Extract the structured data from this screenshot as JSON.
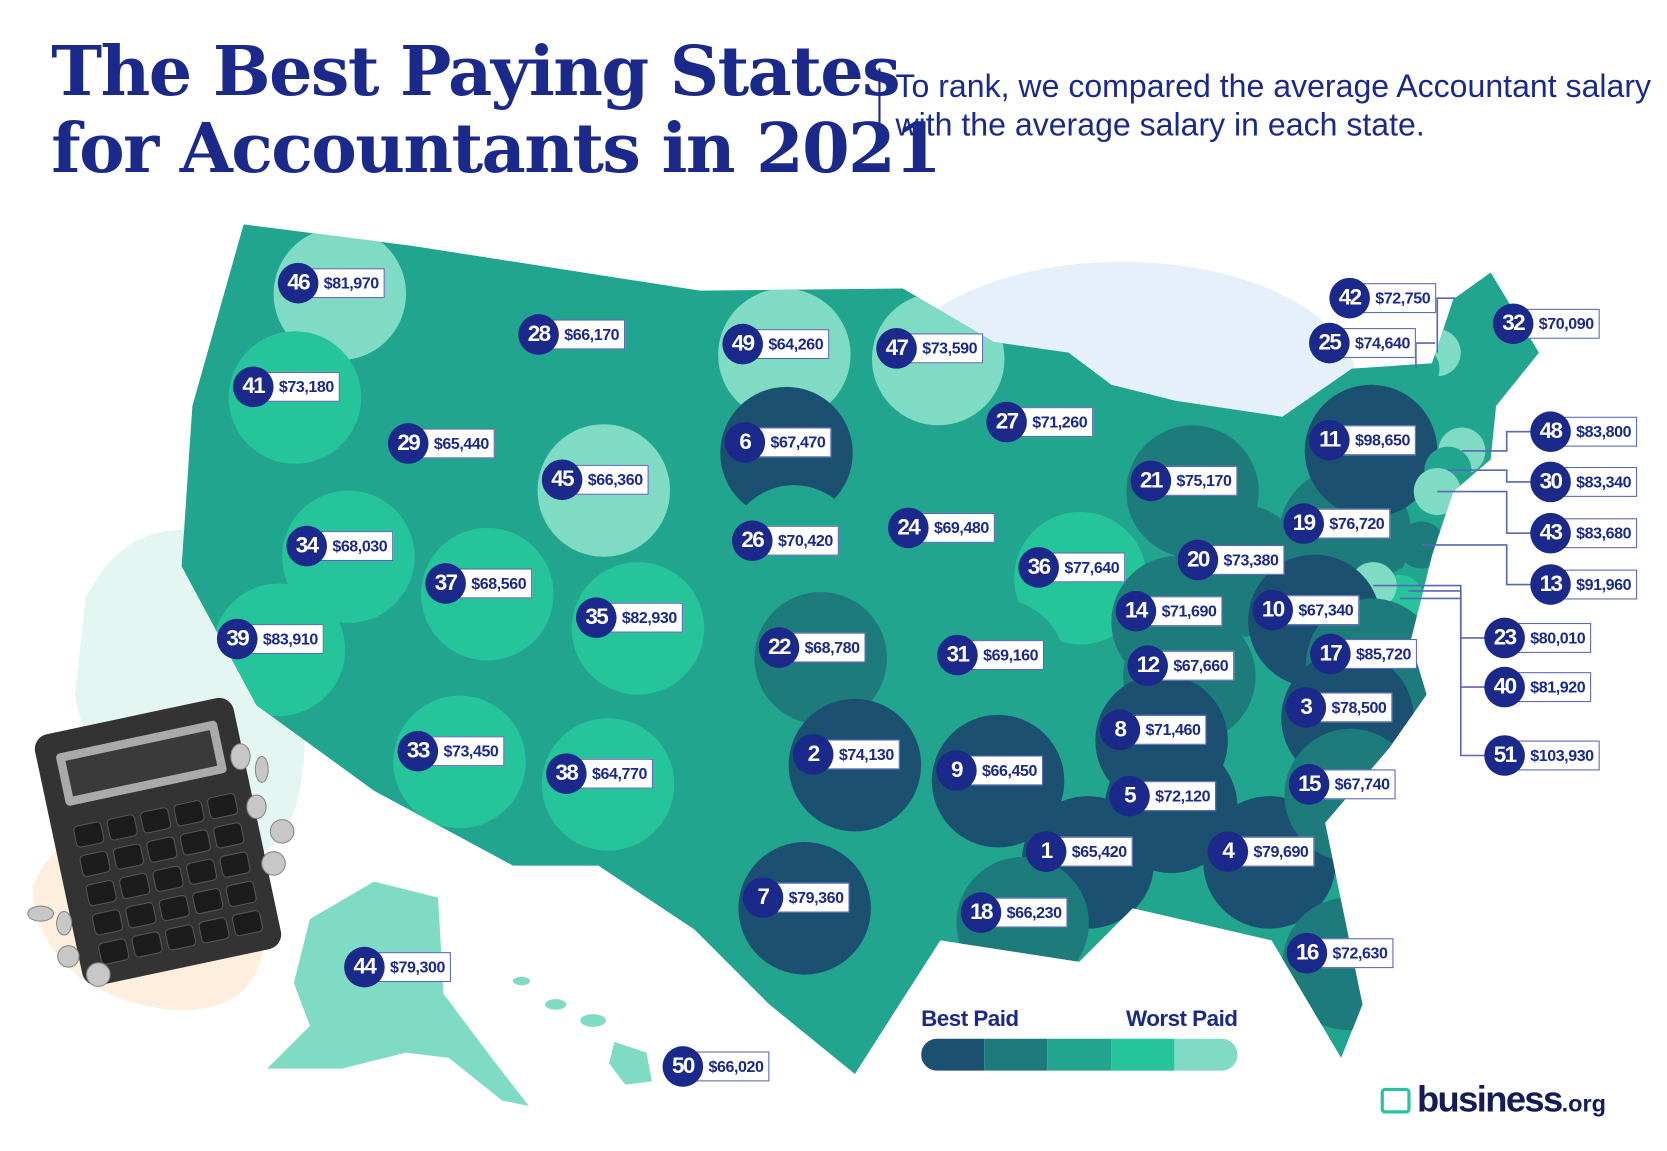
{
  "header": {
    "title_line1": "The Best Paying States",
    "title_line2": "for Accountants in 2021",
    "subtitle": "To rank, we compared the average Accountant salary with the average salary in each state."
  },
  "colors": {
    "navy": "#1b2a8a",
    "tiers": [
      "#1b5070",
      "#1e7b7c",
      "#22a58e",
      "#26c49a",
      "#7fdbc4"
    ],
    "lake": "#e6f0fa"
  },
  "legend": {
    "best": "Best Paid",
    "worst": "Worst Paid"
  },
  "logo": {
    "name": "business",
    "tld": ".org",
    "icon": "briefcase-icon"
  },
  "states": [
    {
      "rank": 46,
      "salary": "$81,970"
    },
    {
      "rank": 28,
      "salary": "$66,170"
    },
    {
      "rank": 49,
      "salary": "$64,260"
    },
    {
      "rank": 47,
      "salary": "$73,590"
    },
    {
      "rank": 41,
      "salary": "$73,180"
    },
    {
      "rank": 29,
      "salary": "$65,440"
    },
    {
      "rank": 6,
      "salary": "$67,470"
    },
    {
      "rank": 45,
      "salary": "$66,360"
    },
    {
      "rank": 27,
      "salary": "$71,260"
    },
    {
      "rank": 21,
      "salary": "$75,170"
    },
    {
      "rank": 24,
      "salary": "$69,480"
    },
    {
      "rank": 26,
      "salary": "$70,420"
    },
    {
      "rank": 34,
      "salary": "$68,030"
    },
    {
      "rank": 37,
      "salary": "$68,560"
    },
    {
      "rank": 36,
      "salary": "$77,640"
    },
    {
      "rank": 20,
      "salary": "$73,380"
    },
    {
      "rank": 19,
      "salary": "$76,720"
    },
    {
      "rank": 11,
      "salary": "$98,650"
    },
    {
      "rank": 42,
      "salary": "$72,750"
    },
    {
      "rank": 25,
      "salary": "$74,640"
    },
    {
      "rank": 32,
      "salary": "$70,090"
    },
    {
      "rank": 48,
      "salary": "$83,800"
    },
    {
      "rank": 30,
      "salary": "$83,340"
    },
    {
      "rank": 43,
      "salary": "$83,680"
    },
    {
      "rank": 13,
      "salary": "$91,960"
    },
    {
      "rank": 23,
      "salary": "$80,010"
    },
    {
      "rank": 40,
      "salary": "$81,920"
    },
    {
      "rank": 51,
      "salary": "$103,930"
    },
    {
      "rank": 35,
      "salary": "$82,930"
    },
    {
      "rank": 22,
      "salary": "$68,780"
    },
    {
      "rank": 39,
      "salary": "$83,910"
    },
    {
      "rank": 14,
      "salary": "$71,690"
    },
    {
      "rank": 10,
      "salary": "$67,340"
    },
    {
      "rank": 17,
      "salary": "$85,720"
    },
    {
      "rank": 31,
      "salary": "$69,160"
    },
    {
      "rank": 12,
      "salary": "$67,660"
    },
    {
      "rank": 3,
      "salary": "$78,500"
    },
    {
      "rank": 8,
      "salary": "$71,460"
    },
    {
      "rank": 33,
      "salary": "$73,450"
    },
    {
      "rank": 2,
      "salary": "$74,130"
    },
    {
      "rank": 9,
      "salary": "$66,450"
    },
    {
      "rank": 38,
      "salary": "$64,770"
    },
    {
      "rank": 5,
      "salary": "$72,120"
    },
    {
      "rank": 1,
      "salary": "$65,420"
    },
    {
      "rank": 4,
      "salary": "$79,690"
    },
    {
      "rank": 15,
      "salary": "$67,740"
    },
    {
      "rank": 7,
      "salary": "$79,360"
    },
    {
      "rank": 18,
      "salary": "$66,230"
    },
    {
      "rank": 16,
      "salary": "$72,630"
    },
    {
      "rank": 44,
      "salary": "$79,300"
    },
    {
      "rank": 50,
      "salary": "$66,020"
    }
  ]
}
